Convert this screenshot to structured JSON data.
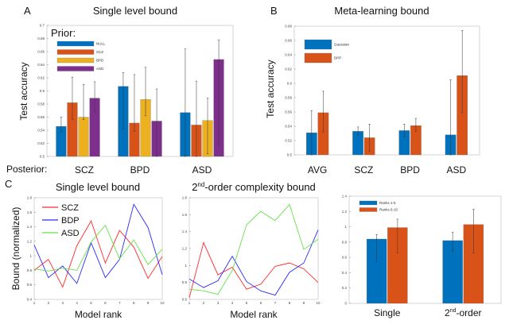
{
  "panel_letters": {
    "a": "A",
    "b": "B",
    "c": "C"
  },
  "posterior_label": "Posterior:",
  "chart_data": [
    {
      "type": "bar",
      "title": "Single level bound",
      "ylabel": "Test accuracy",
      "categories": [
        "SCZ",
        "BPD",
        "ASD"
      ],
      "ylim": [
        0.5,
        0.7
      ],
      "yticks": [
        0.5,
        0.52,
        0.54,
        0.56,
        0.58,
        0.6,
        0.62,
        0.64,
        0.66,
        0.68,
        0.7
      ],
      "legend_title": "Prior:",
      "legend_placement": "top-left",
      "series": [
        {
          "name": "NULL",
          "color": "#0072BD",
          "values": [
            0.546,
            0.607,
            0.567
          ],
          "err_low": [
            0.538,
            0.542,
            0.5
          ],
          "err_high": [
            0.56,
            0.628,
            0.664
          ]
        },
        {
          "name": "SCZ",
          "color": "#D95319",
          "values": [
            0.582,
            0.551,
            0.548
          ],
          "err_low": [
            0.556,
            0.538,
            0.5
          ],
          "err_high": [
            0.621,
            0.625,
            0.615
          ]
        },
        {
          "name": "BPD",
          "color": "#EDB120",
          "values": [
            0.56,
            0.587,
            0.555
          ],
          "err_low": [
            0.556,
            0.562,
            0.504
          ],
          "err_high": [
            0.61,
            0.636,
            0.589
          ]
        },
        {
          "name": "ASD",
          "color": "#7E2F8E",
          "values": [
            0.589,
            0.554,
            0.648
          ],
          "err_low": [
            0.568,
            0.5,
            0.517
          ],
          "err_high": [
            0.614,
            0.603,
            0.678
          ]
        }
      ]
    },
    {
      "type": "bar",
      "title": "Meta-learning bound",
      "ylabel": "Test accuracy",
      "categories": [
        "AVG",
        "SCZ",
        "BPD",
        "ASD"
      ],
      "ylim": [
        0.5,
        0.68
      ],
      "yticks": [
        0.5,
        0.52,
        0.54,
        0.56,
        0.58,
        0.6,
        0.62,
        0.64,
        0.66,
        0.68
      ],
      "legend_placement": "top-left",
      "series": [
        {
          "name": "Gaussian",
          "color": "#0072BD",
          "values": [
            0.531,
            0.533,
            0.534,
            0.528
          ],
          "err_low": [
            0.5,
            0.528,
            0.525,
            0.5
          ],
          "err_high": [
            0.562,
            0.539,
            0.543,
            0.605
          ]
        },
        {
          "name": "DPP",
          "color": "#D95319",
          "values": [
            0.559,
            0.524,
            0.541,
            0.611
          ],
          "err_low": [
            0.532,
            0.505,
            0.533,
            0.559
          ],
          "err_high": [
            0.589,
            0.543,
            0.551,
            0.674
          ]
        }
      ]
    },
    {
      "type": "line",
      "title": "Single level bound",
      "xlabel": "Model rank",
      "ylabel": "Bound (normalized)",
      "x": [
        1,
        2,
        3,
        4,
        5,
        6,
        7,
        8,
        9,
        10
      ],
      "ylim": [
        0.4,
        1.8
      ],
      "yticks": [
        0.4,
        0.6,
        0.8,
        1,
        1.2,
        1.4,
        1.6,
        1.8
      ],
      "legend_placement": "top-left",
      "series": [
        {
          "name": "SCZ",
          "color": "#ff2a2a",
          "values": [
            0.8,
            0.95,
            0.57,
            1.14,
            1.48,
            0.9,
            1.35,
            1.12,
            0.69,
            0.99
          ]
        },
        {
          "name": "BDP",
          "color": "#2a2aff",
          "values": [
            1.15,
            0.7,
            0.86,
            0.62,
            1.18,
            0.7,
            0.95,
            1.71,
            1.39,
            0.74
          ]
        },
        {
          "name": "ASD",
          "color": "#66e04a",
          "values": [
            0.82,
            0.79,
            0.83,
            0.8,
            1.19,
            1.42,
            0.96,
            1.22,
            0.88,
            1.09
          ]
        }
      ]
    },
    {
      "type": "line",
      "title_main": "2",
      "title_sup": "nd",
      "title_rest": "-order complexity bound",
      "xlabel": "Model rank",
      "x": [
        1,
        2,
        3,
        4,
        5,
        6,
        7,
        8,
        9,
        10
      ],
      "ylim": [
        0.6,
        1.8
      ],
      "yticks": [
        0.6,
        0.8,
        1,
        1.2,
        1.4,
        1.6,
        1.8
      ],
      "series": [
        {
          "color": "#ff2a2a",
          "values": [
            0.62,
            1.27,
            0.89,
            0.98,
            0.72,
            0.78,
            0.99,
            1.03,
            0.96,
            0.8
          ]
        },
        {
          "color": "#2a2aff",
          "values": [
            0.84,
            0.74,
            0.82,
            1.11,
            0.81,
            0.7,
            0.65,
            0.92,
            1.03,
            1.42
          ]
        },
        {
          "color": "#66e04a",
          "values": [
            0.72,
            0.7,
            0.66,
            0.94,
            1.48,
            1.64,
            1.53,
            1.72,
            1.19,
            1.31
          ]
        }
      ]
    },
    {
      "type": "bar",
      "categories": [
        "Single",
        "2nd-order"
      ],
      "category_labels": [
        {
          "main": "Single",
          "sup": "",
          "rest": ""
        },
        {
          "main": "2",
          "sup": "nd",
          "rest": "-order"
        }
      ],
      "ylim": [
        0,
        1.4
      ],
      "yticks": [
        0,
        0.2,
        0.4,
        0.6,
        0.8,
        1,
        1.2,
        1.4
      ],
      "legend_placement": "top-left",
      "series": [
        {
          "name": "Ranks 1-5",
          "color": "#0072BD",
          "values": [
            0.84,
            0.82
          ],
          "err_low": [
            0.54,
            0.68
          ],
          "err_high": [
            0.9,
            0.93
          ]
        },
        {
          "name": "Ranks 6-10",
          "color": "#D95319",
          "values": [
            0.99,
            1.03
          ],
          "err_low": [
            0.66,
            0.66
          ],
          "err_high": [
            1.1,
            1.23
          ]
        }
      ]
    }
  ]
}
